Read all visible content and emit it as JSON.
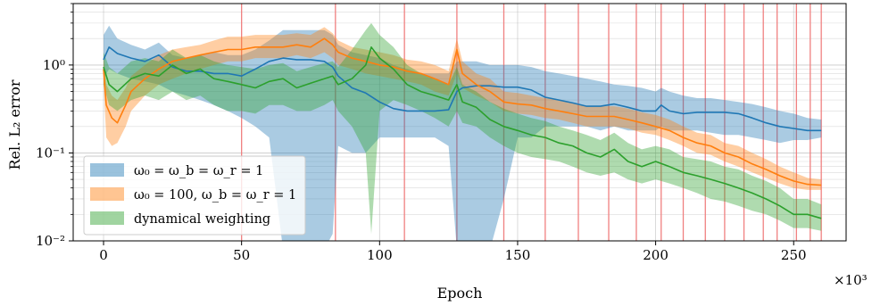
{
  "chart_data": {
    "type": "line",
    "xlabel": "Epoch",
    "ylabel": "Rel. L₂ error",
    "x_multiplier_label": "×10³",
    "xlim": [
      -11,
      269
    ],
    "ylim": [
      0.01,
      5
    ],
    "yscale": "log",
    "x_ticks": [
      0,
      50,
      100,
      150,
      200,
      250
    ],
    "x_tick_labels": [
      "0",
      "50",
      "100",
      "150",
      "200",
      "250"
    ],
    "y_ticks": [
      0.01,
      0.1,
      1
    ],
    "y_tick_labels": [
      "10⁻²",
      "10⁻¹",
      "10⁰"
    ],
    "grid": true,
    "legend_position": "lower-left",
    "vertical_markers": [
      50,
      84,
      109,
      128,
      145,
      160,
      172,
      183,
      193,
      202,
      210,
      218,
      225,
      232,
      239,
      244,
      251,
      256,
      260
    ],
    "series": [
      {
        "name": "ω₀ = ω_b = ω_r = 1",
        "color": "#1f77b4",
        "x": [
          0,
          2,
          5,
          10,
          15,
          20,
          25,
          30,
          35,
          40,
          45,
          50,
          55,
          60,
          65,
          70,
          75,
          80,
          83,
          85,
          90,
          95,
          100,
          105,
          110,
          115,
          120,
          125,
          128,
          130,
          135,
          140,
          145,
          150,
          155,
          160,
          165,
          170,
          175,
          180,
          185,
          190,
          195,
          200,
          202,
          205,
          210,
          215,
          220,
          225,
          230,
          235,
          240,
          245,
          250,
          255,
          260
        ],
        "y": [
          1.15,
          1.6,
          1.35,
          1.2,
          1.1,
          1.3,
          0.95,
          0.85,
          0.85,
          0.8,
          0.8,
          0.75,
          0.9,
          1.1,
          1.2,
          1.15,
          1.15,
          1.1,
          0.95,
          0.75,
          0.55,
          0.48,
          0.38,
          0.32,
          0.3,
          0.3,
          0.3,
          0.31,
          0.5,
          0.55,
          0.58,
          0.58,
          0.56,
          0.56,
          0.52,
          0.43,
          0.4,
          0.37,
          0.34,
          0.34,
          0.36,
          0.33,
          0.3,
          0.3,
          0.35,
          0.3,
          0.28,
          0.29,
          0.29,
          0.29,
          0.28,
          0.25,
          0.22,
          0.2,
          0.19,
          0.18,
          0.18
        ],
        "lower": [
          0.7,
          0.9,
          0.8,
          0.7,
          0.65,
          0.6,
          0.5,
          0.45,
          0.4,
          0.35,
          0.3,
          0.25,
          0.2,
          0.15,
          0.008,
          0.008,
          0.008,
          0.008,
          0.012,
          0.12,
          0.1,
          0.1,
          0.15,
          0.15,
          0.15,
          0.15,
          0.15,
          0.12,
          0.008,
          0.008,
          0.008,
          0.008,
          0.03,
          0.15,
          0.15,
          0.2,
          0.2,
          0.2,
          0.2,
          0.18,
          0.2,
          0.18,
          0.18,
          0.18,
          0.2,
          0.18,
          0.18,
          0.18,
          0.17,
          0.16,
          0.16,
          0.15,
          0.14,
          0.13,
          0.14,
          0.14,
          0.15
        ],
        "upper": [
          2.2,
          2.8,
          2.0,
          1.7,
          1.5,
          1.8,
          1.3,
          1.2,
          1.3,
          1.4,
          1.3,
          1.3,
          1.5,
          1.9,
          2.5,
          2.5,
          2.5,
          2.5,
          2.2,
          1.7,
          1.4,
          1.3,
          1.2,
          1.0,
          0.9,
          0.8,
          0.8,
          0.8,
          1.1,
          1.1,
          1.1,
          1.0,
          1.0,
          1.0,
          0.95,
          0.85,
          0.8,
          0.75,
          0.7,
          0.65,
          0.6,
          0.58,
          0.55,
          0.5,
          0.55,
          0.5,
          0.45,
          0.42,
          0.42,
          0.4,
          0.38,
          0.36,
          0.33,
          0.3,
          0.28,
          0.25,
          0.24
        ]
      },
      {
        "name": "ω₀ = 100, ω_b = ω_r = 1",
        "color": "#ff7f0e",
        "x": [
          0,
          1,
          3,
          5,
          8,
          10,
          15,
          20,
          25,
          30,
          35,
          40,
          45,
          50,
          55,
          60,
          65,
          70,
          75,
          80,
          83,
          85,
          90,
          95,
          100,
          105,
          110,
          115,
          120,
          125,
          128,
          130,
          135,
          140,
          145,
          150,
          155,
          160,
          165,
          170,
          175,
          180,
          185,
          190,
          195,
          200,
          205,
          210,
          215,
          220,
          225,
          230,
          235,
          240,
          245,
          250,
          255,
          260
        ],
        "y": [
          0.9,
          0.35,
          0.25,
          0.22,
          0.35,
          0.5,
          0.7,
          0.9,
          1.1,
          1.2,
          1.3,
          1.4,
          1.5,
          1.5,
          1.6,
          1.6,
          1.6,
          1.7,
          1.6,
          2.0,
          1.7,
          1.4,
          1.2,
          1.1,
          1.0,
          0.95,
          0.85,
          0.8,
          0.7,
          0.6,
          1.5,
          0.8,
          0.6,
          0.5,
          0.38,
          0.36,
          0.35,
          0.32,
          0.3,
          0.28,
          0.26,
          0.26,
          0.26,
          0.24,
          0.22,
          0.2,
          0.18,
          0.15,
          0.13,
          0.12,
          0.1,
          0.09,
          0.075,
          0.065,
          0.055,
          0.048,
          0.044,
          0.043
        ],
        "lower": [
          0.6,
          0.15,
          0.12,
          0.13,
          0.2,
          0.3,
          0.45,
          0.6,
          0.7,
          0.8,
          0.9,
          1.0,
          1.1,
          1.1,
          1.2,
          1.2,
          1.2,
          1.3,
          1.2,
          1.4,
          1.2,
          1.0,
          0.9,
          0.8,
          0.75,
          0.7,
          0.65,
          0.6,
          0.5,
          0.45,
          0.8,
          0.55,
          0.45,
          0.38,
          0.3,
          0.28,
          0.27,
          0.25,
          0.24,
          0.22,
          0.2,
          0.2,
          0.2,
          0.19,
          0.17,
          0.16,
          0.14,
          0.12,
          0.1,
          0.095,
          0.08,
          0.07,
          0.06,
          0.052,
          0.045,
          0.04,
          0.038,
          0.038
        ],
        "upper": [
          1.3,
          0.6,
          0.45,
          0.4,
          0.55,
          0.75,
          1.0,
          1.3,
          1.5,
          1.6,
          1.7,
          1.9,
          2.1,
          2.1,
          2.2,
          2.2,
          2.2,
          2.3,
          2.2,
          2.7,
          2.3,
          1.9,
          1.6,
          1.5,
          1.4,
          1.3,
          1.15,
          1.1,
          1.0,
          0.85,
          2.0,
          1.1,
          0.8,
          0.7,
          0.5,
          0.48,
          0.45,
          0.42,
          0.4,
          0.37,
          0.34,
          0.34,
          0.34,
          0.32,
          0.29,
          0.27,
          0.24,
          0.2,
          0.17,
          0.16,
          0.13,
          0.12,
          0.1,
          0.085,
          0.07,
          0.06,
          0.052,
          0.05
        ]
      },
      {
        "name": "dynamical weighting",
        "color": "#2ca02c",
        "x": [
          0,
          2,
          5,
          10,
          15,
          20,
          25,
          30,
          35,
          40,
          45,
          50,
          55,
          60,
          65,
          70,
          75,
          80,
          83,
          85,
          90,
          95,
          97,
          100,
          105,
          110,
          115,
          120,
          125,
          128,
          130,
          135,
          140,
          145,
          150,
          155,
          160,
          165,
          170,
          175,
          180,
          185,
          190,
          195,
          200,
          205,
          210,
          215,
          220,
          225,
          230,
          235,
          240,
          245,
          250,
          255,
          260
        ],
        "y": [
          0.95,
          0.6,
          0.5,
          0.7,
          0.8,
          0.75,
          1.0,
          0.8,
          0.9,
          0.7,
          0.65,
          0.6,
          0.55,
          0.65,
          0.7,
          0.55,
          0.62,
          0.7,
          0.75,
          0.6,
          0.7,
          1.0,
          1.6,
          1.2,
          0.9,
          0.6,
          0.5,
          0.45,
          0.4,
          0.6,
          0.38,
          0.33,
          0.24,
          0.2,
          0.18,
          0.16,
          0.15,
          0.13,
          0.12,
          0.1,
          0.09,
          0.11,
          0.08,
          0.07,
          0.08,
          0.07,
          0.06,
          0.055,
          0.05,
          0.045,
          0.04,
          0.035,
          0.03,
          0.025,
          0.02,
          0.02,
          0.018
        ],
        "lower": [
          0.6,
          0.35,
          0.3,
          0.4,
          0.45,
          0.4,
          0.5,
          0.4,
          0.45,
          0.35,
          0.3,
          0.3,
          0.28,
          0.35,
          0.35,
          0.3,
          0.3,
          0.35,
          0.4,
          0.3,
          0.2,
          0.1,
          0.012,
          0.3,
          0.4,
          0.35,
          0.3,
          0.25,
          0.2,
          0.3,
          0.22,
          0.2,
          0.15,
          0.12,
          0.1,
          0.09,
          0.085,
          0.08,
          0.07,
          0.06,
          0.055,
          0.06,
          0.05,
          0.045,
          0.05,
          0.045,
          0.04,
          0.035,
          0.03,
          0.028,
          0.025,
          0.022,
          0.02,
          0.017,
          0.014,
          0.014,
          0.013
        ],
        "upper": [
          1.4,
          0.95,
          0.8,
          1.1,
          1.2,
          1.1,
          1.5,
          1.2,
          1.3,
          1.1,
          1.0,
          0.95,
          0.9,
          1.0,
          1.05,
          0.85,
          0.95,
          1.05,
          1.1,
          0.95,
          1.5,
          2.5,
          3.0,
          2.2,
          1.6,
          1.0,
          0.8,
          0.7,
          0.6,
          0.95,
          0.6,
          0.5,
          0.38,
          0.32,
          0.28,
          0.25,
          0.23,
          0.2,
          0.18,
          0.16,
          0.14,
          0.17,
          0.13,
          0.11,
          0.12,
          0.11,
          0.09,
          0.085,
          0.08,
          0.07,
          0.065,
          0.055,
          0.048,
          0.04,
          0.03,
          0.03,
          0.026
        ]
      }
    ]
  }
}
